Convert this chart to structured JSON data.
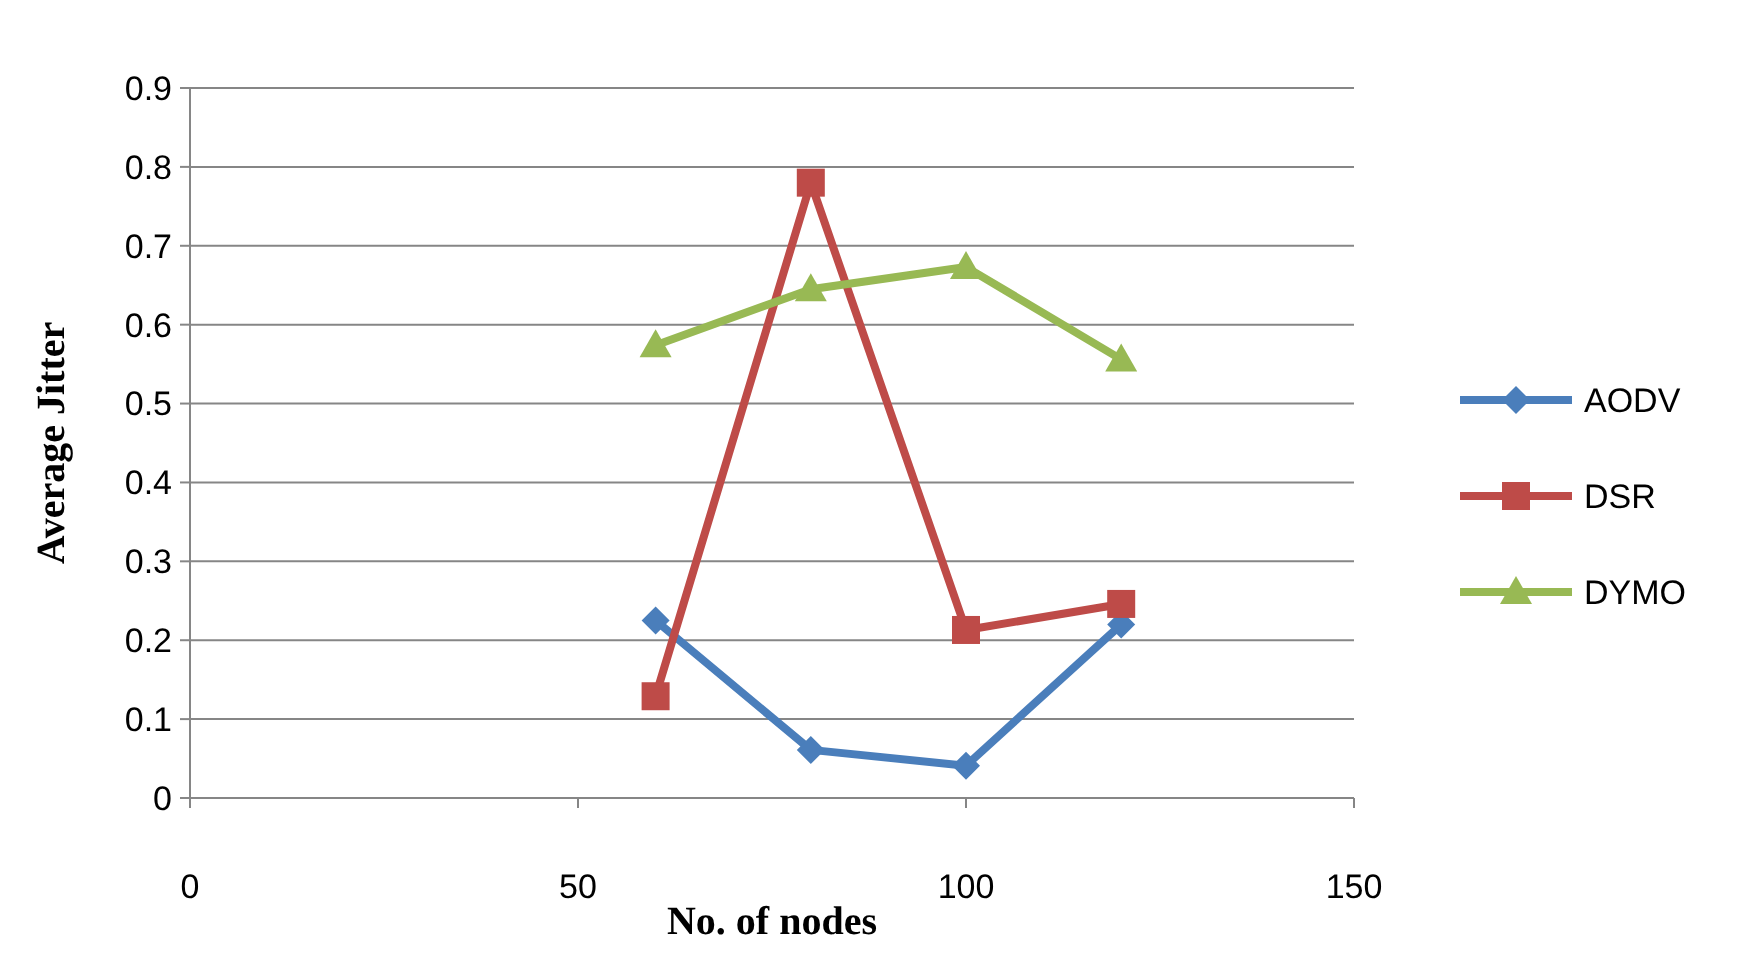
{
  "chart_data": {
    "type": "line",
    "xlabel": "No. of nodes",
    "ylabel": "Average Jitter",
    "x": [
      60,
      80,
      100,
      120
    ],
    "series": [
      {
        "name": "AODV",
        "color": "#4a7ebb",
        "marker": "diamond",
        "values": [
          0.225,
          0.061,
          0.041,
          0.22
        ]
      },
      {
        "name": "DSR",
        "color": "#be4b48",
        "marker": "square",
        "values": [
          0.129,
          0.78,
          0.213,
          0.246
        ]
      },
      {
        "name": "DYMO",
        "color": "#98b954",
        "marker": "triangle",
        "values": [
          0.574,
          0.645,
          0.673,
          0.556
        ]
      }
    ],
    "xlim": [
      0,
      150
    ],
    "xticks": [
      0,
      50,
      100,
      150
    ],
    "ylim": [
      0,
      0.9
    ],
    "yticks": [
      0,
      0.1,
      0.2,
      0.3,
      0.4,
      0.5,
      0.6,
      0.7,
      0.8,
      0.9
    ],
    "grid": "y",
    "legend": "right",
    "line_style": "solid"
  }
}
